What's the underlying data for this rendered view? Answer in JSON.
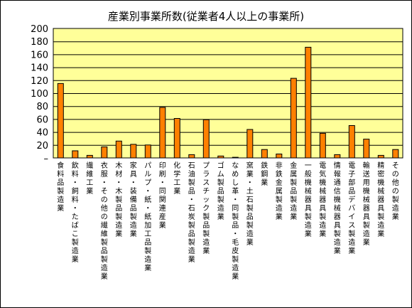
{
  "chart_data": {
    "type": "bar",
    "title": "産業別事業所数(従業者4人以上の事業所)",
    "xlabel": "",
    "ylabel": "",
    "ylim": [
      0,
      200
    ],
    "yticks": [
      200,
      180,
      160,
      140,
      120,
      100,
      80,
      60,
      40,
      20,
      0
    ],
    "ytick_labels": [
      "200",
      "180",
      "160",
      "140",
      "120",
      "100",
      "80",
      "60",
      "40",
      "20",
      "–"
    ],
    "grid": true,
    "legend": "none",
    "colors": {
      "plot_bg": "#FFFF99",
      "bar_fill": "#FF8000",
      "bar_stroke": "#000000",
      "grid": "#000000"
    },
    "categories": [
      "食料品製造業",
      "飲料・飼料・たばこ製造業",
      "繊維工業",
      "衣服・その他の繊維製品製造業",
      "木材・木製品製造業",
      "家具・装備品製造業",
      "パルプ・紙・紙加工品製造業",
      "印刷・同関連産業",
      "化学工業",
      "石油製品・石炭製品製造業",
      "プラスチック製品製造業",
      "ゴム製品製造業",
      "なめし革・同製品・毛皮製造業",
      "窯業・土石製品製造業",
      "鉄鋼業",
      "非鉄金属製造業",
      "金属製品製造業",
      "一般機械器具製造業",
      "電気機械器具製造業",
      "情報通信機械器具製造業",
      "電子部品デバイス製造業",
      "輸送用機械器具製造業",
      "精密機械器具製造業",
      "その他の製造業"
    ],
    "values": [
      115,
      11,
      4,
      17,
      26,
      21,
      20,
      78,
      61,
      5,
      59,
      3,
      1,
      44,
      13,
      6,
      123,
      171,
      38,
      5,
      50,
      29,
      4,
      13
    ]
  }
}
